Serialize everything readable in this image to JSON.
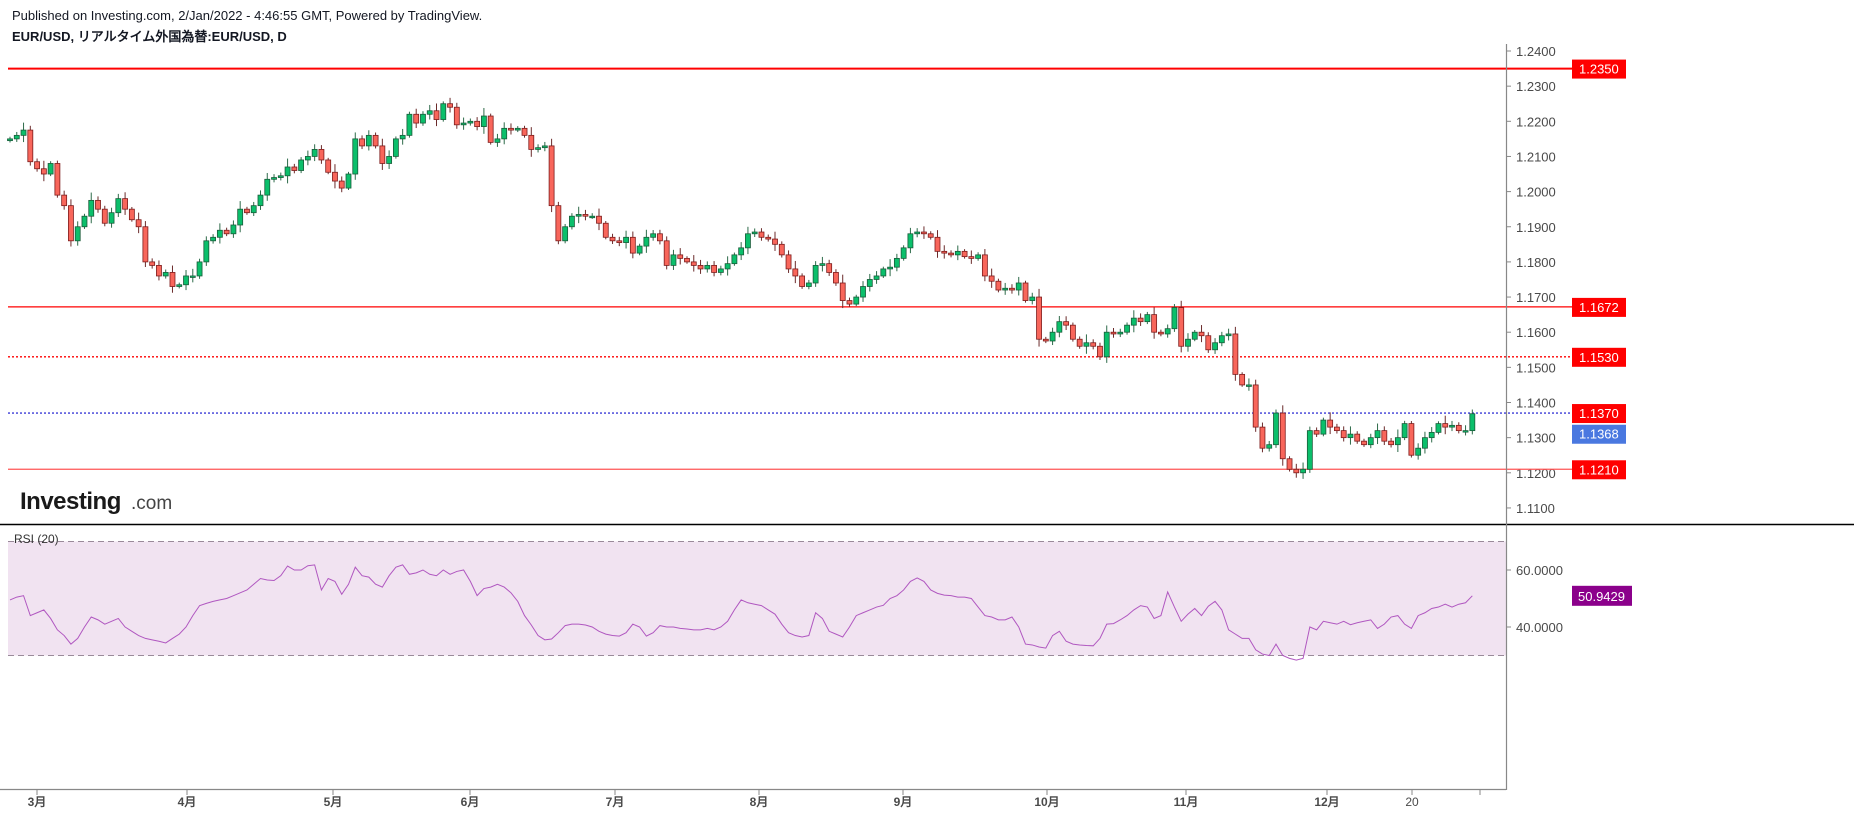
{
  "header": {
    "published": "Published on Investing.com, 2/Jan/2022 - 4:46:55 GMT, Powered by TradingView.",
    "title": "EUR/USD, リアルタイム外国為替:EUR/USD, D"
  },
  "logo": {
    "main": "Investing",
    "suffix": ".com"
  },
  "colors": {
    "up": "#0bbf6b",
    "up_border": "#1a5c3a",
    "down": "#f8665b",
    "down_border": "#7d1c1c",
    "level_line": "#ff0000",
    "current_line": "#3a3ad6",
    "current_price_badge": "#4a78e0",
    "rsi_line": "#b057c0",
    "rsi_band": "#f1e3f1",
    "rsi_badge": "#8b008b"
  },
  "chart_data": [
    {
      "type": "candlestick",
      "title": "EUR/USD, リアルタイム外国為替:EUR/USD, D",
      "ylim": [
        1.105,
        1.242
      ],
      "yticks": [
        "1.2400",
        "1.2300",
        "1.2200",
        "1.2100",
        "1.2000",
        "1.1900",
        "1.1800",
        "1.1700",
        "1.1600",
        "1.1500",
        "1.1400",
        "1.1300",
        "1.1200",
        "1.1100"
      ],
      "xticks": [
        "3月",
        "4月",
        "5月",
        "6月",
        "7月",
        "8月",
        "9月",
        "10月",
        "11月",
        "12月",
        "20"
      ],
      "horizontal_levels": [
        {
          "value": "1.2350",
          "style": "solid"
        },
        {
          "value": "1.1672",
          "style": "solid"
        },
        {
          "value": "1.1530",
          "style": "dotted"
        },
        {
          "value": "1.1370",
          "style": "dotted"
        },
        {
          "value": "1.1210",
          "style": "solid"
        }
      ],
      "current_price": "1.1368",
      "close": [
        1.215,
        1.216,
        1.2175,
        1.2085,
        1.2065,
        1.205,
        1.208,
        1.199,
        1.196,
        1.186,
        1.19,
        1.193,
        1.1975,
        1.195,
        1.191,
        1.194,
        1.198,
        1.195,
        1.192,
        1.19,
        1.18,
        1.179,
        1.176,
        1.177,
        1.173,
        1.1735,
        1.176,
        1.176,
        1.18,
        1.186,
        1.187,
        1.189,
        1.188,
        1.1905,
        1.195,
        1.194,
        1.196,
        1.199,
        1.2035,
        1.204,
        1.2045,
        1.207,
        1.206,
        1.209,
        1.21,
        1.212,
        1.209,
        1.2055,
        1.203,
        1.201,
        1.205,
        1.215,
        1.213,
        1.216,
        1.213,
        1.208,
        1.21,
        1.215,
        1.216,
        1.222,
        1.2195,
        1.222,
        1.223,
        1.2205,
        1.225,
        1.224,
        1.219,
        1.2195,
        1.22,
        1.2185,
        1.2215,
        1.214,
        1.215,
        1.218,
        1.2175,
        1.218,
        1.216,
        1.212,
        1.2125,
        1.213,
        1.196,
        1.186,
        1.19,
        1.193,
        1.1935,
        1.193,
        1.193,
        1.191,
        1.187,
        1.186,
        1.1855,
        1.187,
        1.1825,
        1.1845,
        1.187,
        1.188,
        1.186,
        1.179,
        1.182,
        1.181,
        1.18,
        1.179,
        1.178,
        1.179,
        1.177,
        1.178,
        1.1795,
        1.182,
        1.184,
        1.188,
        1.1885,
        1.187,
        1.1865,
        1.185,
        1.182,
        1.178,
        1.176,
        1.173,
        1.174,
        1.179,
        1.1795,
        1.177,
        1.174,
        1.169,
        1.168,
        1.17,
        1.173,
        1.175,
        1.176,
        1.178,
        1.1785,
        1.181,
        1.184,
        1.188,
        1.1885,
        1.188,
        1.187,
        1.183,
        1.1825,
        1.182,
        1.183,
        1.1815,
        1.181,
        1.182,
        1.176,
        1.1745,
        1.172,
        1.1725,
        1.172,
        1.174,
        1.169,
        1.17,
        1.158,
        1.1575,
        1.16,
        1.163,
        1.162,
        1.158,
        1.156,
        1.157,
        1.156,
        1.153,
        1.16,
        1.1595,
        1.16,
        1.162,
        1.164,
        1.163,
        1.165,
        1.16,
        1.1595,
        1.161,
        1.167,
        1.156,
        1.158,
        1.16,
        1.159,
        1.155,
        1.157,
        1.159,
        1.1595,
        1.148,
        1.145,
        1.145,
        1.133,
        1.127,
        1.128,
        1.137,
        1.124,
        1.121,
        1.12,
        1.121,
        1.132,
        1.131,
        1.135,
        1.133,
        1.132,
        1.13,
        1.131,
        1.129,
        1.128,
        1.13,
        1.132,
        1.129,
        1.128,
        1.13,
        1.134,
        1.125,
        1.127,
        1.13,
        1.1315,
        1.134,
        1.133,
        1.1335,
        1.132,
        1.132,
        1.1368
      ]
    },
    {
      "type": "line",
      "title": "RSI (20)",
      "ylim": [
        20,
        80
      ],
      "yticks": [
        "60.0000",
        "40.0000"
      ],
      "band": [
        30,
        70
      ],
      "last_value": "50.9429",
      "values": [
        49.5,
        50.5,
        51,
        44,
        45,
        46,
        43,
        39,
        37,
        34,
        36,
        40,
        43.5,
        42.5,
        41,
        42,
        43,
        40,
        38.5,
        37,
        36,
        35.5,
        35,
        34.4,
        36,
        37.5,
        40,
        44,
        47.5,
        48.3,
        49,
        49.5,
        50,
        51,
        52,
        53,
        55,
        57,
        56.5,
        56.3,
        58,
        61.4,
        60,
        60,
        61.5,
        61.8,
        53,
        57,
        56,
        51.5,
        55,
        61,
        58,
        57.5,
        55,
        54,
        58,
        61,
        61.8,
        58.5,
        59,
        60,
        58.5,
        58,
        60,
        58.5,
        59.5,
        60,
        56,
        51,
        53.5,
        54,
        55,
        54,
        52,
        49,
        44,
        40.7,
        37,
        35.5,
        35.8,
        38,
        40.5,
        41,
        41,
        40.7,
        40,
        38.5,
        37.5,
        37,
        36.8,
        38,
        41,
        40,
        36.8,
        38,
        40.5,
        40,
        40,
        39.5,
        39.3,
        39,
        39,
        39.5,
        39,
        40,
        42,
        46,
        49.5,
        48.5,
        48,
        47.5,
        46,
        44.5,
        41,
        38,
        37,
        36.5,
        37,
        45,
        43,
        38.5,
        37.5,
        36.5,
        40,
        44,
        45,
        46,
        47,
        47.6,
        50,
        51,
        53,
        56,
        57.2,
        56,
        53,
        51.8,
        51.2,
        51,
        50.5,
        50.5,
        50,
        47,
        44,
        43.5,
        42.5,
        42.5,
        43.5,
        40,
        34,
        33.7,
        33,
        32.6,
        37,
        38.5,
        35,
        34,
        33.7,
        33.5,
        33.4,
        36,
        41,
        41.2,
        42.5,
        44,
        46,
        47.5,
        47,
        43,
        44,
        52.3,
        47,
        42,
        44.5,
        46.5,
        44,
        47.3,
        49,
        46,
        39,
        37.5,
        36,
        36,
        32,
        30.5,
        30,
        34,
        30,
        29,
        28.4,
        29,
        40,
        39,
        42,
        41.5,
        41,
        42,
        40.8,
        41.5,
        42,
        42.5,
        39.5,
        41,
        43.5,
        44,
        41,
        39.5,
        44,
        45,
        46.5,
        47,
        48,
        47,
        48,
        48.5,
        50.94
      ]
    }
  ]
}
